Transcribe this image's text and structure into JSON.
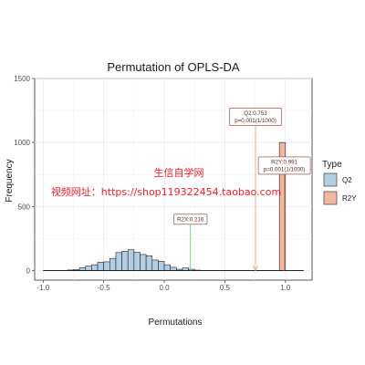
{
  "chart_data": {
    "type": "bar",
    "title": "Permutation of OPLS-DA",
    "xlabel": "Permutations",
    "ylabel": "Frequency",
    "xlim": [
      -1.07,
      1.22
    ],
    "ylim": [
      -75,
      1500
    ],
    "x_ticks": [
      -1.0,
      -0.5,
      0.0,
      0.5,
      1.0
    ],
    "x_tick_labels": [
      "-1.0",
      "-0.5",
      "0.0",
      "0.5",
      "1.0"
    ],
    "y_ticks": [
      0,
      500,
      1000,
      1500
    ],
    "y_tick_labels": [
      "0",
      "500",
      "1000",
      "1500"
    ],
    "bin_width": 0.05,
    "grid": true,
    "legend_position": "right",
    "legend_title": "Type",
    "series": [
      {
        "name": "Q2",
        "color": "#b3cde3",
        "bins": [
          {
            "x0": -0.8,
            "count": 4
          },
          {
            "x0": -0.75,
            "count": 8
          },
          {
            "x0": -0.7,
            "count": 22
          },
          {
            "x0": -0.65,
            "count": 35
          },
          {
            "x0": -0.6,
            "count": 45
          },
          {
            "x0": -0.55,
            "count": 65
          },
          {
            "x0": -0.5,
            "count": 68
          },
          {
            "x0": -0.45,
            "count": 95
          },
          {
            "x0": -0.4,
            "count": 140
          },
          {
            "x0": -0.35,
            "count": 150
          },
          {
            "x0": -0.3,
            "count": 162
          },
          {
            "x0": -0.25,
            "count": 142
          },
          {
            "x0": -0.2,
            "count": 125
          },
          {
            "x0": -0.15,
            "count": 115
          },
          {
            "x0": -0.1,
            "count": 82
          },
          {
            "x0": -0.05,
            "count": 72
          },
          {
            "x0": 0.0,
            "count": 45
          },
          {
            "x0": 0.05,
            "count": 25
          },
          {
            "x0": 0.1,
            "count": 10
          },
          {
            "x0": 0.15,
            "count": 20
          },
          {
            "x0": 0.2,
            "count": 10
          },
          {
            "x0": 0.25,
            "count": 3
          }
        ]
      },
      {
        "name": "R2Y",
        "color": "#f0b8a0",
        "bins": [
          {
            "x0": 0.95,
            "count": 1000
          }
        ]
      }
    ],
    "baseline_range": [
      -1.0,
      1.15
    ],
    "markers": [
      {
        "name": "R2X",
        "x": 0.216,
        "color": "#7fc97f",
        "label": "R2X:0.216",
        "label_y": 400
      },
      {
        "name": "Q2",
        "x": 0.753,
        "color": "#f4a582",
        "label_lines": [
          "Q2:0.753",
          "p=0.001(1/1000)"
        ],
        "label_y": 1200
      },
      {
        "name": "R2Y",
        "x": 0.991,
        "color": "#c47f62",
        "label_lines": [
          "R2Y:0.991",
          "p=0.001(1/1000)"
        ],
        "label_y": 820
      }
    ]
  },
  "watermark": {
    "line1": "生信自学网",
    "line2": "视频网址：https://shop119322454.taobao.com"
  }
}
